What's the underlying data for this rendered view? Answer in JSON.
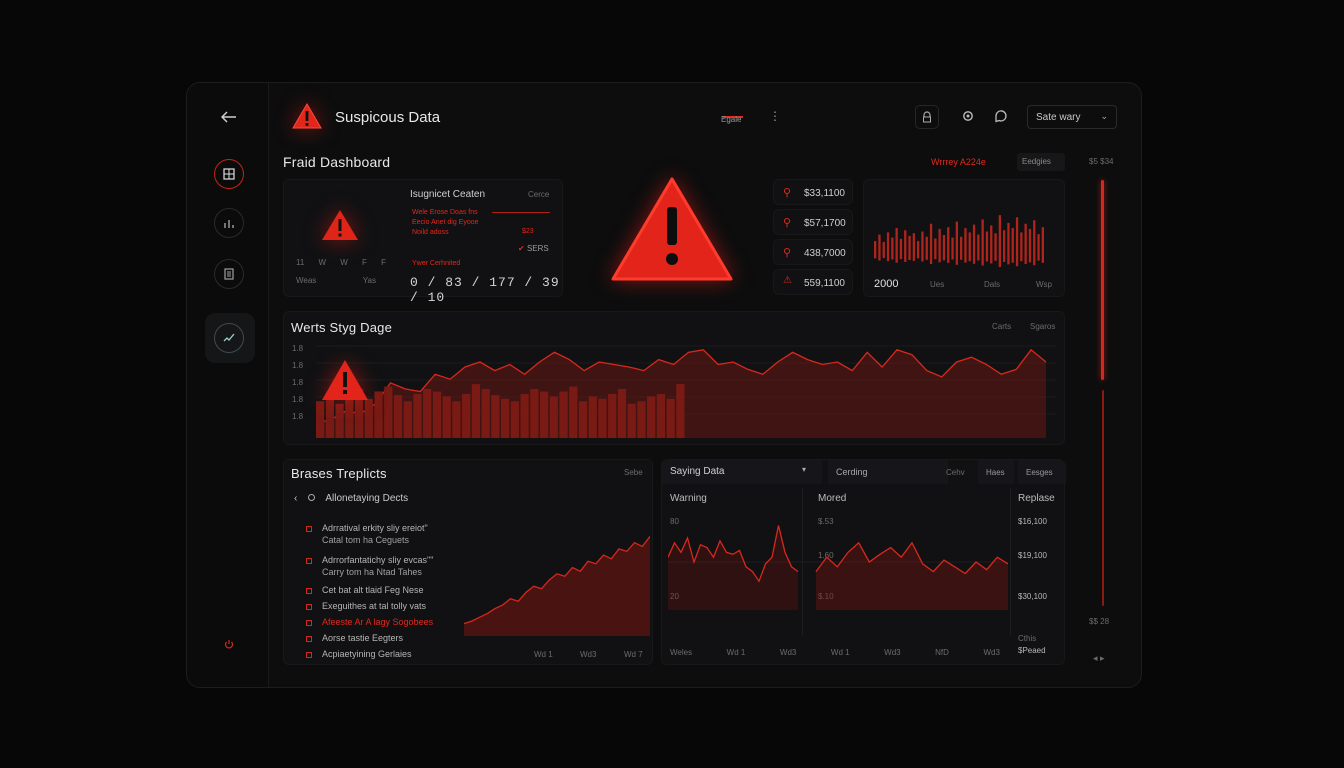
{
  "header": {
    "title": "Suspicous Data",
    "tab_label": "Egale",
    "select_value": "Sate wary"
  },
  "dashboard": {
    "title": "Fraid Dashboard",
    "warning": "Wrrrey A224e",
    "badge": "Eedgies",
    "corner": "$5 $34"
  },
  "card1": {
    "title": "Isugnicet Ceaten",
    "corner": "Cerce",
    "lines": [
      "Wele  Erose Doas  fns",
      "Eecio Anet dig Eyooe",
      "Noild adoss",
      "Ywer Cerhnited"
    ],
    "line_value": "$23",
    "check_label": "SERS",
    "days": [
      "11",
      "W",
      "W",
      "F",
      "F"
    ],
    "foot": [
      "Weas",
      "Yas"
    ],
    "number_row": "0 / 83 / 177 / 39 / 10"
  },
  "stats": [
    {
      "icon": "search-icon",
      "value": "$33,1100"
    },
    {
      "icon": "search-icon",
      "value": "$57,1700"
    },
    {
      "icon": "search-icon",
      "value": "438,7000"
    },
    {
      "icon": "alert-icon",
      "value": "559,1100"
    }
  ],
  "bars_card": {
    "value": "2000",
    "labels": [
      "Ues",
      "Dals",
      "Wsp"
    ]
  },
  "main_chart": {
    "title": "Werts Styg Dage",
    "links": [
      "Carts",
      "Sgaros"
    ],
    "y_ticks": [
      "1.8",
      "1.8",
      "1.8",
      "1.8",
      "1.8"
    ]
  },
  "breaches": {
    "title": "Brases Treplicts",
    "corner": "Sebe",
    "group": "Allonetaying Dects",
    "items": [
      {
        "line1": "Adrratival erkity sliy ereiot\"",
        "line2": "Catal tom ha Ceguets",
        "red": false
      },
      {
        "line1": "Adrrorfantatichy sliy evcas\"\"",
        "line2": "Carry tom ha Ntad Tahes",
        "red": false
      },
      {
        "line1": "Cet bat alt tlaid Feg Nese",
        "line2": "",
        "red": false
      },
      {
        "line1": "Exeguithes at tal tolly vats",
        "line2": "",
        "red": false
      },
      {
        "line1": "Afeeste Ar A lagy Sogobees",
        "line2": "",
        "red": true
      },
      {
        "line1": "Aorse tastie Eegters",
        "line2": "",
        "red": false
      },
      {
        "line1": "Acpiaetyining Gerlaies",
        "line2": "",
        "red": false
      }
    ],
    "x_labels": [
      "Wd 1",
      "Wd3",
      "Wd 7"
    ]
  },
  "saying": {
    "title": "Saying Data",
    "tabs": [
      "Cerding",
      "Cehv",
      "Haes",
      "Eesges"
    ],
    "headers": [
      "Warning",
      "Mored",
      "Replase"
    ],
    "left_y": [
      "80",
      "20"
    ],
    "mid_y": [
      "$.53",
      "1.60",
      "$.10"
    ],
    "right_vals": [
      "$16,100",
      "$19,100",
      "$30,100"
    ],
    "right_foot": [
      "Cthis",
      "$Peaed"
    ],
    "x_labels": [
      "Weles",
      "Wd 1",
      "Wd3",
      "Wd 1",
      "Wd3",
      "NfD",
      "Wd3"
    ]
  },
  "scroll": {
    "top_label": "$5 $34",
    "bottom_label": "$$ 28"
  },
  "chart_data": [
    {
      "type": "area",
      "title": "Werts Styg Dage",
      "series": [
        {
          "values": [
            12,
            15,
            22,
            20,
            28,
            45,
            40,
            38,
            52,
            48,
            58,
            62,
            55,
            60,
            52,
            62,
            70,
            64,
            55,
            62,
            60,
            58,
            55,
            64,
            60,
            70,
            72,
            60,
            62,
            56,
            52,
            62,
            70,
            64,
            60,
            62,
            55,
            70,
            58,
            72,
            68,
            55,
            50,
            62,
            66,
            60,
            52,
            56,
            72,
            62
          ]
        },
        {
          "values": [
            30,
            34,
            28,
            36,
            40,
            32,
            38,
            42,
            35,
            30,
            36,
            40,
            38,
            34,
            30,
            36,
            44,
            40,
            35,
            32,
            30,
            36,
            40,
            38,
            34,
            38,
            42,
            30,
            34,
            32,
            36,
            40,
            28,
            30,
            34,
            36,
            32,
            44
          ]
        }
      ]
    },
    {
      "type": "bar",
      "values": [
        30,
        45,
        28,
        50,
        38,
        60,
        35,
        55,
        42,
        48,
        30,
        52,
        40,
        70,
        36,
        58,
        44,
        62,
        38,
        75,
        40,
        60,
        50,
        68,
        45,
        80,
        52,
        66,
        48,
        90,
        55,
        72,
        60,
        85,
        50,
        70,
        58,
        78,
        46,
        62
      ]
    },
    {
      "type": "area",
      "title": "Brases Treplicts",
      "series": [
        {
          "values": [
            10,
            12,
            15,
            18,
            22,
            25,
            30,
            28,
            35,
            40,
            38,
            45,
            50,
            48,
            55,
            52,
            60,
            58,
            65,
            62,
            70,
            68,
            75,
            72,
            80
          ]
        }
      ]
    },
    {
      "type": "line",
      "title": "Saying Data",
      "series": [
        {
          "values": [
            55,
            70,
            60,
            75,
            50,
            68,
            65,
            55,
            72,
            60,
            58,
            62,
            45,
            40,
            30,
            48,
            55,
            88,
            60,
            45,
            40
          ]
        },
        {
          "values": [
            40,
            55,
            45,
            60,
            70,
            50,
            58,
            65,
            55,
            70,
            48,
            40,
            52,
            45,
            38,
            50,
            42,
            55,
            48
          ]
        }
      ]
    }
  ]
}
